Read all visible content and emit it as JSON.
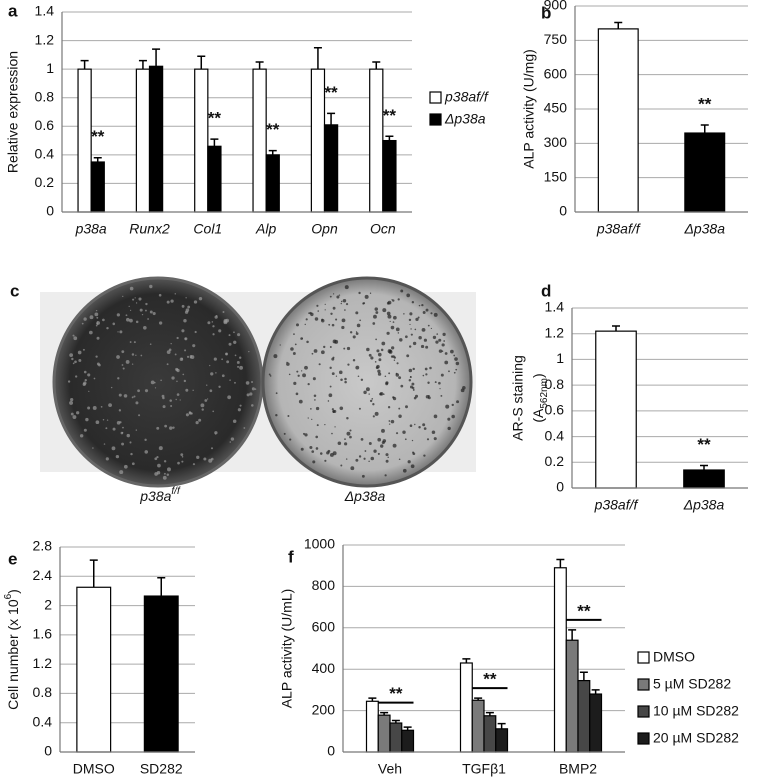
{
  "chart_data": [
    {
      "type": "bar",
      "panel": "a",
      "y_label": "Relative expression",
      "categories": [
        "p38a",
        "Runx2",
        "Col1",
        "Alp",
        "Opn",
        "Ocn"
      ],
      "series": [
        {
          "name": "p38af/f",
          "color": "#ffffff",
          "values": [
            1,
            1,
            1,
            1,
            1,
            1
          ],
          "errors": [
            0.06,
            0.06,
            0.09,
            0.05,
            0.15,
            0.05
          ]
        },
        {
          "name": "Δp38a",
          "color": "#000000",
          "values": [
            0.35,
            1.02,
            0.46,
            0.4,
            0.61,
            0.5
          ],
          "errors": [
            0.03,
            0.12,
            0.05,
            0.03,
            0.08,
            0.03
          ]
        }
      ],
      "significance": [
        "**",
        null,
        "**",
        "**",
        "**",
        "**"
      ],
      "ylim": [
        0,
        1.4
      ],
      "yticks": [
        0,
        0.2,
        0.4,
        0.6,
        0.8,
        1,
        1.2,
        1.4
      ],
      "grid": true,
      "legend": "right"
    },
    {
      "type": "bar",
      "panel": "b",
      "y_label": "ALP activity (U/mg)",
      "categories": [
        "p38af/f",
        "Δp38a"
      ],
      "values": [
        800,
        345
      ],
      "errors": [
        28,
        35
      ],
      "colors": [
        "#ffffff",
        "#000000"
      ],
      "significance": [
        null,
        "**"
      ],
      "ylim": [
        0,
        900
      ],
      "yticks": [
        0,
        150,
        300,
        450,
        600,
        750,
        900
      ],
      "grid": true
    },
    {
      "type": "image",
      "panel": "c",
      "labels": [
        {
          "text": "p38a",
          "sup": "f/f"
        },
        {
          "text": "Δp38a"
        }
      ]
    },
    {
      "type": "bar",
      "panel": "d",
      "y_label": "AR-S staining",
      "y_label_2": {
        "text": "(A",
        "sub": "562nm",
        "end": ")"
      },
      "categories": [
        "p38af/f",
        "Δp38a"
      ],
      "values": [
        1.22,
        0.14
      ],
      "errors": [
        0.04,
        0.035
      ],
      "colors": [
        "#ffffff",
        "#000000"
      ],
      "significance": [
        null,
        "**"
      ],
      "ylim": [
        0,
        1.4
      ],
      "yticks": [
        0,
        0.2,
        0.4,
        0.6,
        0.8,
        1,
        1.2,
        1.4
      ],
      "grid": true
    },
    {
      "type": "bar",
      "panel": "e",
      "y_label": {
        "text": "Cell number (x 10",
        "sup": "6",
        "end": ")"
      },
      "categories": [
        "DMSO",
        "SD282"
      ],
      "values": [
        2.25,
        2.13
      ],
      "errors": [
        0.37,
        0.25
      ],
      "colors": [
        "#ffffff",
        "#000000"
      ],
      "ylim": [
        0,
        2.8
      ],
      "yticks": [
        0,
        0.4,
        0.8,
        1.2,
        1.6,
        2,
        2.4,
        2.8
      ],
      "grid": true
    },
    {
      "type": "bar",
      "panel": "f",
      "y_label": "ALP activity (U/mL)",
      "categories": [
        "Veh",
        "TGFβ1",
        "BMP2"
      ],
      "series": [
        {
          "name": "DMSO",
          "color": "#ffffff",
          "values": [
            245,
            430,
            890
          ],
          "errors": [
            15,
            20,
            40
          ]
        },
        {
          "name": "5 µM SD282",
          "color": "#7a7a7a",
          "values": [
            178,
            250,
            540
          ],
          "errors": [
            12,
            10,
            50
          ]
        },
        {
          "name": "10 µM SD282",
          "color": "#474747",
          "values": [
            140,
            175,
            345
          ],
          "errors": [
            12,
            15,
            40
          ]
        },
        {
          "name": "20 µM SD282",
          "color": "#1c1c1c",
          "values": [
            105,
            112,
            280
          ],
          "errors": [
            15,
            25,
            20
          ]
        }
      ],
      "significance": [
        "**",
        "**",
        "**"
      ],
      "ylim": [
        0,
        1000
      ],
      "yticks": [
        0,
        200,
        400,
        600,
        800,
        1000
      ],
      "grid": true,
      "legend": "right"
    }
  ]
}
